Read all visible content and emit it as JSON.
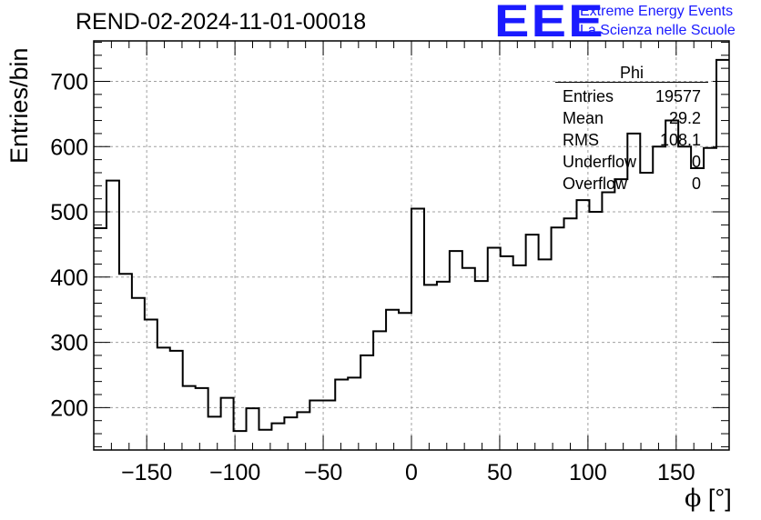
{
  "title": "REND-02-2024-11-01-00018",
  "logo": {
    "mark": "EEE",
    "line1": "Extreme Energy Events",
    "line2": "La Scienza nelle Scuole",
    "color": "#1a1aff"
  },
  "stats": {
    "name": "Phi",
    "rows": [
      {
        "label": "Entries",
        "value": "19577"
      },
      {
        "label": "Mean",
        "value": "29.2"
      },
      {
        "label": "RMS",
        "value": "108.1"
      },
      {
        "label": "Underflow",
        "value": "0"
      },
      {
        "label": "Overflow",
        "value": "0"
      }
    ]
  },
  "chart_data": {
    "type": "histogram",
    "title": "REND-02-2024-11-01-00018",
    "xlabel_symbol": "ϕ",
    "xlabel_unit": "[°]",
    "ylabel": "Entries/bin",
    "xlim": [
      -180,
      180
    ],
    "ylim": [
      135,
      762
    ],
    "grid": true,
    "bin_width": 7.2,
    "bin_edges_start": -180,
    "values": [
      475,
      548,
      405,
      368,
      335,
      292,
      287,
      233,
      230,
      186,
      215,
      164,
      199,
      166,
      176,
      185,
      193,
      211,
      211,
      243,
      246,
      280,
      317,
      350,
      345,
      505,
      388,
      393,
      440,
      414,
      394,
      445,
      432,
      418,
      465,
      427,
      476,
      490,
      518,
      500,
      530,
      550,
      620,
      560,
      600,
      640,
      600,
      567,
      598,
      733
    ],
    "xticks": [
      -150,
      -100,
      -50,
      0,
      50,
      100,
      150
    ],
    "xtick_labels": [
      "−150",
      "−100",
      "−50",
      "0",
      "50",
      "100",
      "150"
    ],
    "yticks": [
      200,
      300,
      400,
      500,
      600,
      700
    ],
    "ytick_labels": [
      "200",
      "300",
      "400",
      "500",
      "600",
      "700"
    ]
  }
}
